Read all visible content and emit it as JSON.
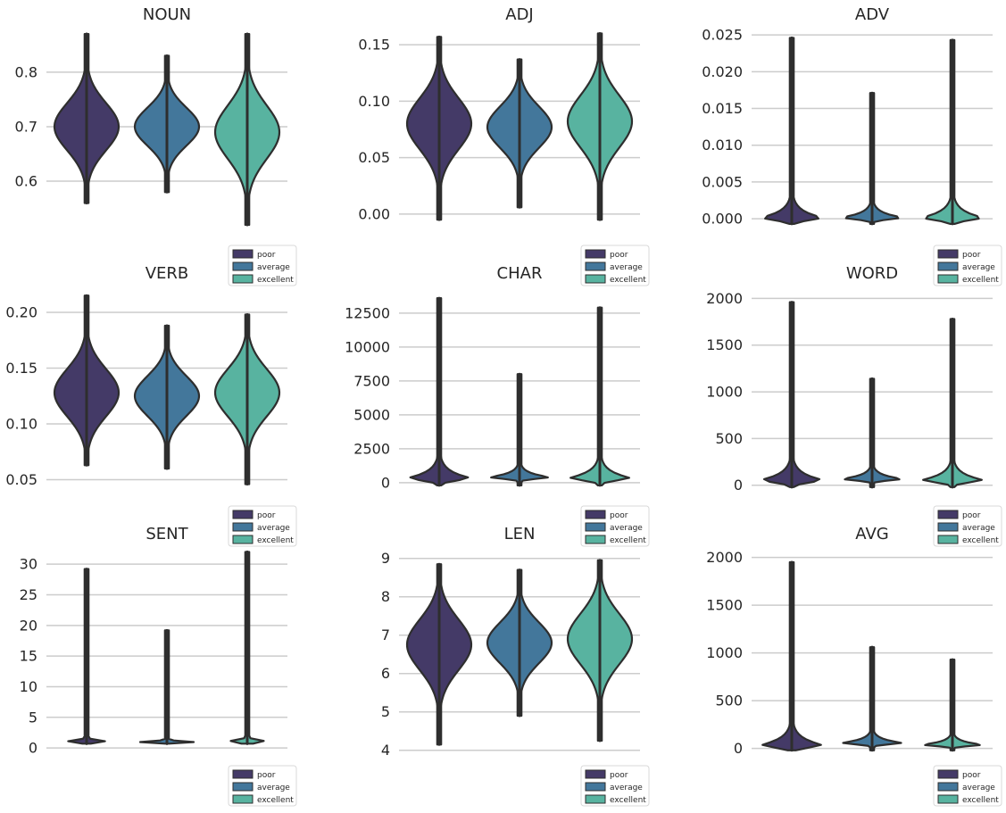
{
  "categories": [
    "poor",
    "average",
    "excellent"
  ],
  "colors": {
    "poor": "#443a67",
    "average": "#43779b",
    "excellent": "#58b3a0",
    "outline": "#2e2e2e",
    "grid": "#cccccc"
  },
  "chart_data": [
    {
      "type": "violin",
      "title": "NOUN",
      "yticks": [
        "0.6",
        "0.7",
        "0.8"
      ],
      "tick_values": [
        0.6,
        0.7,
        0.8
      ],
      "ylim": [
        0.515,
        0.875
      ],
      "series": [
        {
          "name": "poor",
          "min": 0.56,
          "max": 0.87,
          "mode": 0.7
        },
        {
          "name": "average",
          "min": 0.58,
          "max": 0.83,
          "mode": 0.7
        },
        {
          "name": "excellent",
          "min": 0.52,
          "max": 0.87,
          "mode": 0.69
        }
      ]
    },
    {
      "type": "violin",
      "title": "ADJ",
      "yticks": [
        "0.00",
        "0.05",
        "0.10",
        "0.15"
      ],
      "tick_values": [
        0,
        0.05,
        0.1,
        0.15
      ],
      "ylim": [
        -0.012,
        0.162
      ],
      "series": [
        {
          "name": "poor",
          "min": -0.005,
          "max": 0.157,
          "mode": 0.08
        },
        {
          "name": "average",
          "min": 0.006,
          "max": 0.137,
          "mode": 0.077
        },
        {
          "name": "excellent",
          "min": -0.005,
          "max": 0.16,
          "mode": 0.082
        }
      ]
    },
    {
      "type": "violin",
      "title": "ADV",
      "yticks": [
        "0.000",
        "0.005",
        "0.010",
        "0.015",
        "0.020",
        "0.025"
      ],
      "tick_values": [
        0,
        0.005,
        0.01,
        0.015,
        0.02,
        0.025
      ],
      "ylim": [
        -0.0012,
        0.0255
      ],
      "series": [
        {
          "name": "poor",
          "min": -0.0007,
          "max": 0.0246,
          "mode": 0.0002
        },
        {
          "name": "average",
          "min": -0.0007,
          "max": 0.0171,
          "mode": 0.0002
        },
        {
          "name": "excellent",
          "min": -0.0007,
          "max": 0.0243,
          "mode": 0.0002
        }
      ]
    },
    {
      "type": "violin",
      "title": "VERB",
      "yticks": [
        "0.05",
        "0.10",
        "0.15",
        "0.20"
      ],
      "tick_values": [
        0.05,
        0.1,
        0.15,
        0.2
      ],
      "ylim": [
        0.04,
        0.22
      ],
      "series": [
        {
          "name": "poor",
          "min": 0.063,
          "max": 0.215,
          "mode": 0.128
        },
        {
          "name": "average",
          "min": 0.06,
          "max": 0.188,
          "mode": 0.125
        },
        {
          "name": "excellent",
          "min": 0.046,
          "max": 0.198,
          "mode": 0.128
        }
      ]
    },
    {
      "type": "violin",
      "title": "CHAR",
      "yticks": [
        "0",
        "2500",
        "5000",
        "7500",
        "10000",
        "12500"
      ],
      "tick_values": [
        0,
        2500,
        5000,
        7500,
        10000,
        12500
      ],
      "ylim": [
        -600,
        14200
      ],
      "series": [
        {
          "name": "poor",
          "min": -200,
          "max": 13600,
          "mode": 380
        },
        {
          "name": "average",
          "min": -200,
          "max": 8000,
          "mode": 420
        },
        {
          "name": "excellent",
          "min": -200,
          "max": 12900,
          "mode": 380
        }
      ]
    },
    {
      "type": "violin",
      "title": "WORD",
      "yticks": [
        "0",
        "500",
        "1000",
        "1500",
        "2000"
      ],
      "tick_values": [
        0,
        500,
        1000,
        1500,
        2000
      ],
      "ylim": [
        -60,
        2090
      ],
      "series": [
        {
          "name": "poor",
          "min": -20,
          "max": 1960,
          "mode": 60
        },
        {
          "name": "average",
          "min": -20,
          "max": 1140,
          "mode": 70
        },
        {
          "name": "excellent",
          "min": -20,
          "max": 1780,
          "mode": 60
        }
      ]
    },
    {
      "type": "violin",
      "title": "SENT",
      "yticks": [
        "0",
        "5",
        "10",
        "15",
        "20",
        "25",
        "30"
      ],
      "tick_values": [
        0,
        5,
        10,
        15,
        20,
        25,
        30
      ],
      "ylim": [
        -1,
        32.5
      ],
      "series": [
        {
          "name": "poor",
          "min": 0.7,
          "max": 29.2,
          "mode": 1
        },
        {
          "name": "average",
          "min": 0.7,
          "max": 19.2,
          "mode": 1
        },
        {
          "name": "excellent",
          "min": 0.7,
          "max": 32.0,
          "mode": 1
        }
      ]
    },
    {
      "type": "violin",
      "title": "LEN",
      "yticks": [
        "4",
        "5",
        "6",
        "7",
        "8",
        "9"
      ],
      "tick_values": [
        4,
        5,
        6,
        7,
        8,
        9
      ],
      "ylim": [
        3.9,
        9.25
      ],
      "series": [
        {
          "name": "poor",
          "min": 4.15,
          "max": 8.85,
          "mode": 6.75
        },
        {
          "name": "average",
          "min": 4.9,
          "max": 8.7,
          "mode": 6.8
        },
        {
          "name": "excellent",
          "min": 4.25,
          "max": 8.95,
          "mode": 6.9
        }
      ]
    },
    {
      "type": "violin",
      "title": "AVG",
      "yticks": [
        "0",
        "500",
        "1000",
        "1500",
        "2000"
      ],
      "tick_values": [
        0,
        500,
        1000,
        1500,
        2000
      ],
      "ylim": [
        -60,
        2090
      ],
      "series": [
        {
          "name": "poor",
          "min": -20,
          "max": 1950,
          "mode": 40
        },
        {
          "name": "average",
          "min": -20,
          "max": 1060,
          "mode": 60
        },
        {
          "name": "excellent",
          "min": -20,
          "max": 930,
          "mode": 40
        }
      ]
    }
  ]
}
